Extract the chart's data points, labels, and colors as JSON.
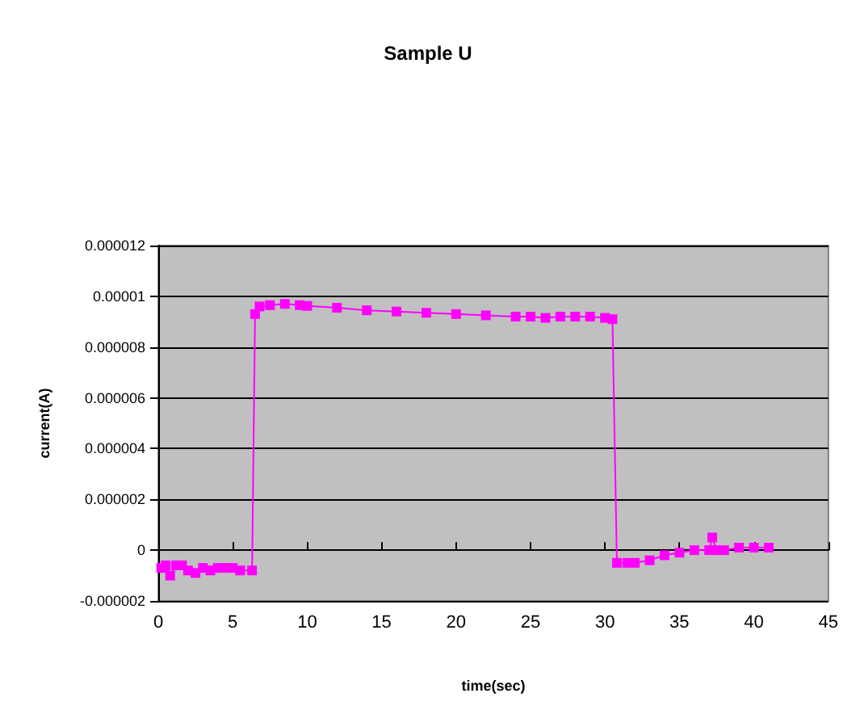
{
  "chart_data": {
    "type": "line",
    "title": "Sample U",
    "xlabel": "time(sec)",
    "ylabel": "current(A)",
    "x": [
      0.2,
      0.5,
      0.8,
      1.2,
      1.6,
      2.0,
      2.5,
      3.0,
      3.5,
      4.0,
      4.5,
      5.0,
      5.5,
      6.3,
      6.5,
      6.8,
      7.5,
      8.5,
      9.5,
      10,
      12,
      14,
      16,
      18,
      20,
      22,
      24,
      25,
      26,
      27,
      28,
      29,
      30,
      30.5,
      30.8,
      31.5,
      32,
      33,
      34,
      35,
      36,
      37,
      37.2,
      37.5,
      38,
      39,
      40,
      41
    ],
    "series": [
      {
        "color": "#ff00ff",
        "values": [
          -7e-07,
          -6e-07,
          -1e-06,
          -6e-07,
          -6e-07,
          -8e-07,
          -9e-07,
          -7e-07,
          -8e-07,
          -7e-07,
          -7e-07,
          -7e-07,
          -8e-07,
          -8e-07,
          9.3e-06,
          9.6e-06,
          9.65e-06,
          9.7e-06,
          9.65e-06,
          9.62e-06,
          9.55e-06,
          9.45e-06,
          9.4e-06,
          9.35e-06,
          9.3e-06,
          9.25e-06,
          9.2e-06,
          9.2e-06,
          9.15e-06,
          9.2e-06,
          9.2e-06,
          9.2e-06,
          9.15e-06,
          9.1e-06,
          -5e-07,
          -5e-07,
          -5e-07,
          -4e-07,
          -2e-07,
          -1e-07,
          0,
          0,
          5e-07,
          0,
          0,
          1e-07,
          1e-07,
          1e-07
        ]
      }
    ],
    "xlim": [
      0,
      45
    ],
    "xticks": [
      0,
      5,
      10,
      15,
      20,
      25,
      30,
      35,
      40,
      45
    ],
    "ylim": [
      -2e-06,
      1.2e-05
    ],
    "yticks": [
      {
        "value": -2e-06,
        "label": "-0.000002"
      },
      {
        "value": 0,
        "label": "0"
      },
      {
        "value": 2e-06,
        "label": "0.000002"
      },
      {
        "value": 4e-06,
        "label": "0.000004"
      },
      {
        "value": 6e-06,
        "label": "0.000006"
      },
      {
        "value": 8e-06,
        "label": "0.000008"
      },
      {
        "value": 1e-05,
        "label": "0.00001"
      },
      {
        "value": 1.2e-05,
        "label": "0.000012"
      }
    ],
    "grid": "y",
    "marker": "square",
    "line_style": "solid"
  }
}
